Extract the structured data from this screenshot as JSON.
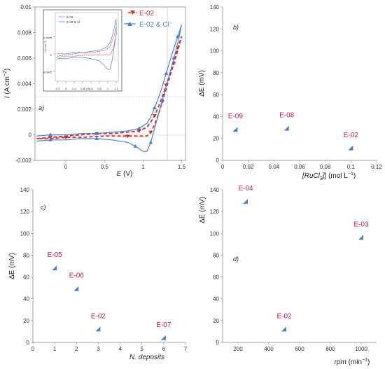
{
  "colors": {
    "red": "#d32f2f",
    "blue": "#4a7fd4",
    "label": "#c2185b"
  },
  "chart_data": [
    {
      "panel": "a)",
      "type": "line",
      "xlabel_var": "E",
      "xlabel_unit": "(V)",
      "ylabel_var": "I",
      "ylabel_unit": "(A cm",
      "ylabel_exp": "−2",
      "ylabel_close": ")",
      "xlim": [
        -0.4,
        1.55
      ],
      "ylim": [
        -0.002,
        0.01
      ],
      "xticks": [
        "0",
        "0.5",
        "1",
        "1.5"
      ],
      "yticks": [
        "-0.002",
        "0",
        "0.002",
        "0.004",
        "0.006",
        "0.008",
        "0.01"
      ],
      "legend": [
        "E-02",
        "E-02 & Cl⁻"
      ],
      "inset": {
        "legend": [
          "E-02",
          "E-02 & Cl"
        ],
        "xticks": [
          "-0.2",
          "0",
          "0.2",
          "0.4",
          "0.6",
          "0.8",
          "1",
          "1.2"
        ],
        "yticks": [
          "-0.0005",
          "0",
          "0.0005"
        ],
        "xlabel": "E (V)",
        "ylabel": "I (A cm⁻²)"
      },
      "series": [
        {
          "name": "E-02",
          "x": [
            -0.38,
            -0.2,
            0,
            0.2,
            0.4,
            0.6,
            0.8,
            0.95,
            1.05,
            1.1,
            1.15,
            1.2,
            1.25,
            1.3,
            1.35,
            1.4,
            1.45,
            1.5,
            1.45,
            1.4,
            1.35,
            1.3,
            1.25,
            1.2,
            1.15,
            1.1,
            1.05,
            1.0,
            0.8,
            0.5,
            0.2,
            0,
            -0.2,
            -0.38
          ],
          "y": [
            -0.0003,
            -0.0002,
            -0.0001,
            0,
            0.0001,
            0.0001,
            0.0002,
            0.0003,
            0.0006,
            0.001,
            0.0015,
            0.0022,
            0.003,
            0.0039,
            0.0048,
            0.0058,
            0.0068,
            0.0077,
            0.0066,
            0.0056,
            0.0046,
            0.0036,
            0.0026,
            0.0016,
            0.0008,
            0.0002,
            -0.0001,
            -0.0001,
            -0.0001,
            -0.0001,
            -0.0002,
            -0.0002,
            -0.0003,
            -0.0003
          ]
        },
        {
          "name": "E-02 & Cl⁻",
          "x": [
            -0.38,
            -0.2,
            0,
            0.2,
            0.4,
            0.6,
            0.8,
            0.95,
            1.05,
            1.1,
            1.15,
            1.2,
            1.25,
            1.3,
            1.35,
            1.4,
            1.45,
            1.5,
            1.45,
            1.4,
            1.35,
            1.3,
            1.25,
            1.2,
            1.15,
            1.1,
            1.05,
            1.0,
            0.9,
            0.8,
            0.6,
            0.4,
            0.2,
            0,
            -0.2,
            -0.38
          ],
          "y": [
            -0.0001,
            0,
            0,
            0.0001,
            0.0001,
            0.0002,
            0.0003,
            0.0005,
            0.0009,
            0.0014,
            0.0021,
            0.0029,
            0.0038,
            0.0048,
            0.0058,
            0.0068,
            0.0077,
            0.0086,
            0.0072,
            0.006,
            0.0049,
            0.0038,
            0.0027,
            0.0016,
            0.0005,
            -0.0006,
            -0.0013,
            -0.0013,
            -0.0009,
            -0.0006,
            -0.0004,
            -0.0003,
            -0.0003,
            -0.0004,
            -0.0004,
            -0.0005
          ]
        }
      ]
    },
    {
      "panel": "b)",
      "type": "scatter",
      "ylabel": "ΔE (mV)",
      "xlabel_pre": "[RuCl",
      "xlabel_sub": "3",
      "xlabel_post": "] (mol L",
      "xlabel_exp": "−1",
      "xlabel_close": ")",
      "xlim": [
        0,
        0.12
      ],
      "ylim": [
        0,
        140
      ],
      "xticks": [
        "0",
        "0.02",
        "0.04",
        "0.06",
        "0.08",
        "0.1",
        "0.12"
      ],
      "yticks": [
        "0",
        "20",
        "40",
        "60",
        "80",
        "100",
        "120",
        "140"
      ],
      "points": [
        {
          "x": 0.01,
          "y": 28,
          "label": "E-09"
        },
        {
          "x": 0.05,
          "y": 29,
          "label": "E-08"
        },
        {
          "x": 0.1,
          "y": 11,
          "label": "E-02"
        }
      ]
    },
    {
      "panel": "c)",
      "type": "scatter",
      "ylabel": "ΔE (mV)",
      "xlabel": "N. deposits",
      "xlim": [
        0,
        7
      ],
      "ylim": [
        0,
        140
      ],
      "xticks": [
        "0",
        "1",
        "2",
        "3",
        "4",
        "5",
        "6",
        "7"
      ],
      "yticks": [
        "0",
        "20",
        "40",
        "60",
        "80",
        "100",
        "120",
        "140"
      ],
      "points": [
        {
          "x": 1,
          "y": 68,
          "label": "E-05"
        },
        {
          "x": 2,
          "y": 49,
          "label": "E-06"
        },
        {
          "x": 3,
          "y": 12,
          "label": "E-02"
        },
        {
          "x": 6,
          "y": 4,
          "label": "E-07"
        }
      ]
    },
    {
      "panel": "d)",
      "type": "scatter",
      "ylabel": "ΔE (mV)",
      "xlabel_pre": "rpm",
      "xlabel_post": " (min",
      "xlabel_exp": "−1",
      "xlabel_close": ")",
      "xlim": [
        100,
        1100
      ],
      "ylim": [
        0,
        140
      ],
      "xticks": [
        "200",
        "400",
        "600",
        "800",
        "1000"
      ],
      "yticks": [
        "0",
        "20",
        "40",
        "60",
        "80",
        "100",
        "120",
        "140"
      ],
      "points": [
        {
          "x": 250,
          "y": 129,
          "label": "E-04"
        },
        {
          "x": 500,
          "y": 12,
          "label": "E-02"
        },
        {
          "x": 1000,
          "y": 96,
          "label": "E-03"
        }
      ]
    }
  ]
}
